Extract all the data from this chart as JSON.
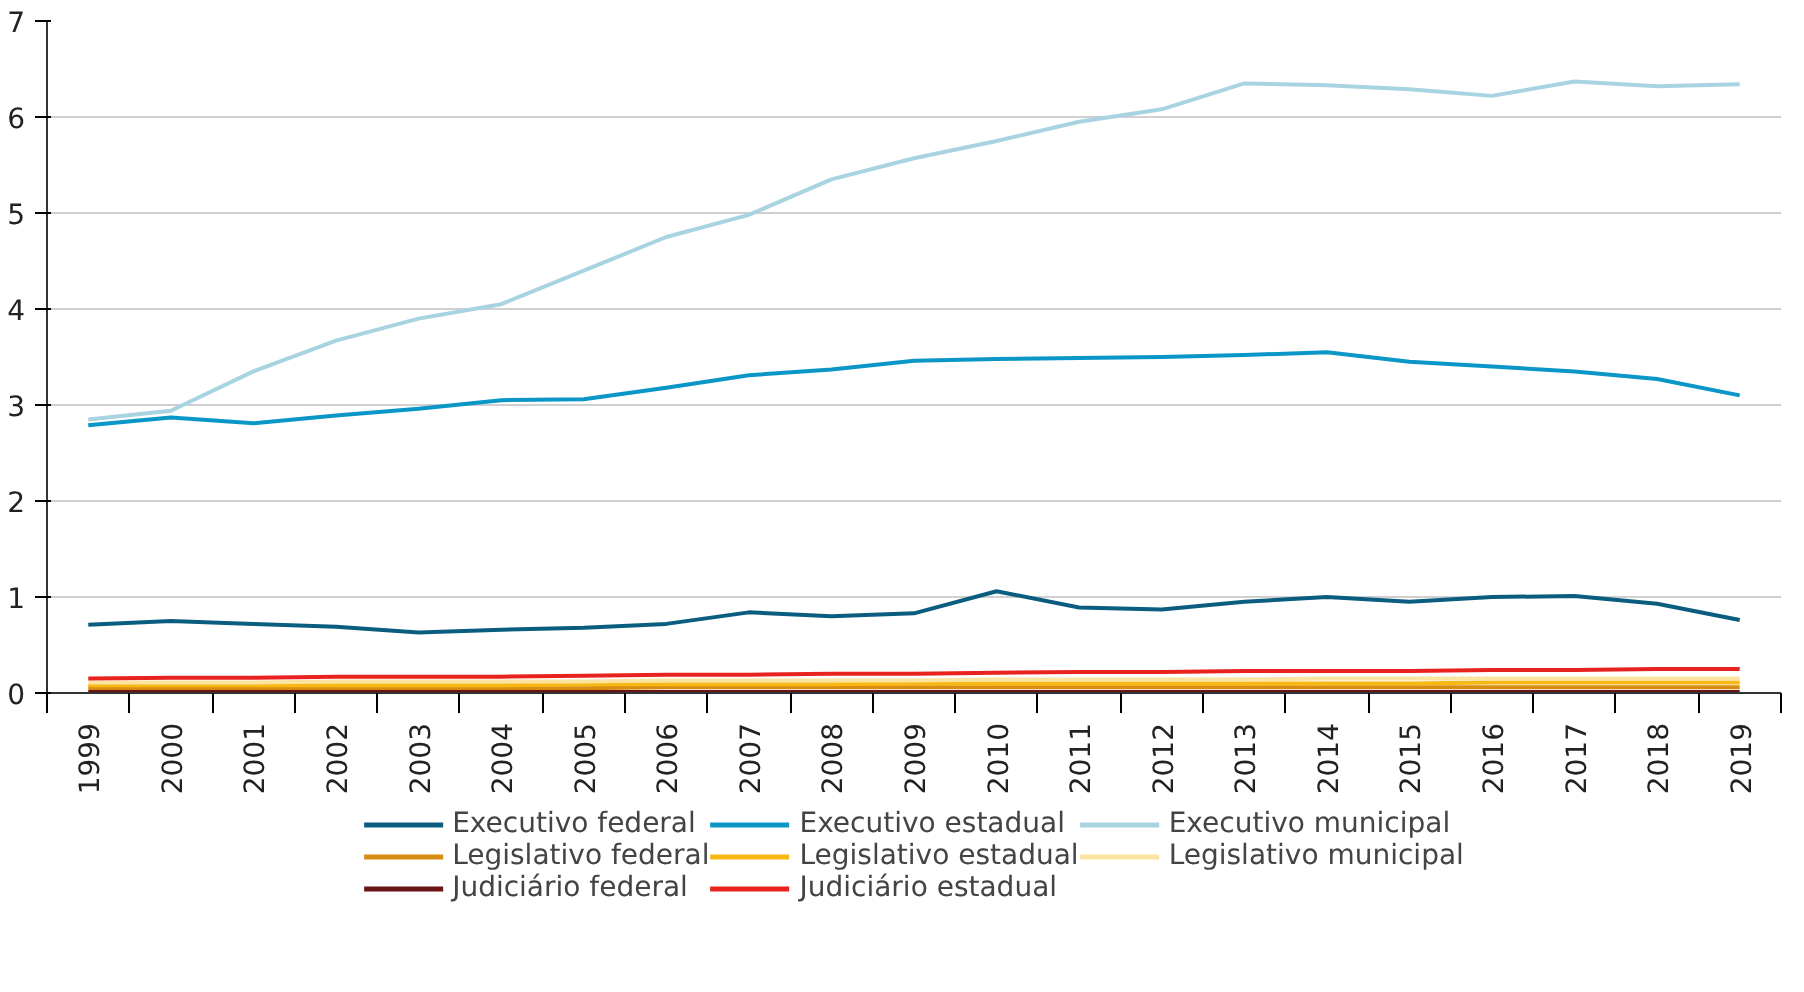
{
  "chart_data": {
    "type": "line",
    "categories": [
      "1999",
      "2000",
      "2001",
      "2002",
      "2003",
      "2004",
      "2005",
      "2006",
      "2007",
      "2008",
      "2009",
      "2010",
      "2011",
      "2012",
      "2013",
      "2014",
      "2015",
      "2016",
      "2017",
      "2018",
      "2019"
    ],
    "ylim": [
      0,
      7
    ],
    "yticks": [
      0,
      1,
      2,
      3,
      4,
      5,
      6,
      7
    ],
    "grid": "y",
    "legend": "bottom",
    "series": [
      {
        "name": "Executivo federal",
        "color": "#0b5d80",
        "values": [
          0.71,
          0.75,
          0.72,
          0.69,
          0.63,
          0.66,
          0.68,
          0.72,
          0.84,
          0.8,
          0.83,
          1.06,
          0.89,
          0.87,
          0.95,
          1.0,
          0.95,
          1.0,
          1.01,
          0.93,
          0.76
        ]
      },
      {
        "name": "Executivo estadual",
        "color": "#0a96c6",
        "values": [
          2.79,
          2.87,
          2.81,
          2.89,
          2.96,
          3.05,
          3.06,
          3.18,
          3.31,
          3.37,
          3.46,
          3.48,
          3.49,
          3.5,
          3.52,
          3.55,
          3.45,
          3.4,
          3.35,
          3.27,
          3.1
        ]
      },
      {
        "name": "Executivo municipal",
        "color": "#a8d4e2",
        "values": [
          2.85,
          2.94,
          3.35,
          3.67,
          3.9,
          4.05,
          4.4,
          4.75,
          4.98,
          5.35,
          5.57,
          5.75,
          5.95,
          6.08,
          6.35,
          6.33,
          6.29,
          6.22,
          6.37,
          6.32,
          6.34
        ]
      },
      {
        "name": "Legislativo federal",
        "color": "#d98c12",
        "values": [
          0.05,
          0.05,
          0.05,
          0.05,
          0.05,
          0.05,
          0.05,
          0.06,
          0.06,
          0.06,
          0.06,
          0.06,
          0.06,
          0.06,
          0.06,
          0.06,
          0.06,
          0.06,
          0.06,
          0.06,
          0.06
        ]
      },
      {
        "name": "Legislativo estadual",
        "color": "#f7b813",
        "values": [
          0.08,
          0.08,
          0.08,
          0.08,
          0.08,
          0.08,
          0.09,
          0.09,
          0.09,
          0.09,
          0.1,
          0.1,
          0.1,
          0.1,
          0.1,
          0.1,
          0.1,
          0.11,
          0.11,
          0.11,
          0.11
        ]
      },
      {
        "name": "Legislativo municipal",
        "color": "#fbe3a0",
        "values": [
          0.11,
          0.11,
          0.11,
          0.12,
          0.12,
          0.12,
          0.12,
          0.13,
          0.13,
          0.13,
          0.13,
          0.14,
          0.14,
          0.14,
          0.14,
          0.15,
          0.15,
          0.15,
          0.15,
          0.15,
          0.15
        ]
      },
      {
        "name": "Judiciário federal",
        "color": "#6b1414",
        "values": [
          0.01,
          0.01,
          0.01,
          0.01,
          0.01,
          0.01,
          0.01,
          0.01,
          0.01,
          0.01,
          0.01,
          0.01,
          0.01,
          0.01,
          0.01,
          0.01,
          0.01,
          0.01,
          0.01,
          0.01,
          0.01
        ]
      },
      {
        "name": "Judiciário estadual",
        "color": "#e8231f",
        "values": [
          0.15,
          0.16,
          0.16,
          0.17,
          0.17,
          0.17,
          0.18,
          0.19,
          0.19,
          0.2,
          0.2,
          0.21,
          0.22,
          0.22,
          0.23,
          0.23,
          0.23,
          0.24,
          0.24,
          0.25,
          0.25
        ]
      }
    ]
  }
}
